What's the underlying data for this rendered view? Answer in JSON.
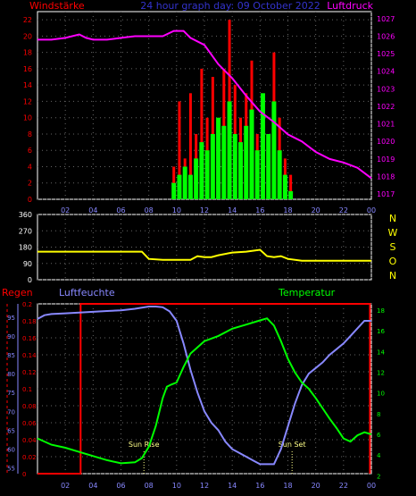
{
  "header": {
    "left_label": "Windstärke",
    "center_label": "24 hour graph day: 09 October 2022",
    "right_label": "Luftdruck"
  },
  "weather_labels": {
    "rain": "Regen",
    "humidity": "Luftfeuchte",
    "temperature": "Temperatur",
    "sunrise": "Sun Rise",
    "sunset": "Sun Set"
  },
  "colors": {
    "wind_label": "#ff0000",
    "title": "#3333cc",
    "pressure": "#ff00ff",
    "wind_gust": "#ff0000",
    "wind_avg": "#00ff00",
    "direction": "#ffff00",
    "compass": "#ffff00",
    "rain": "#ff0000",
    "humidity": "#8888ff",
    "temperature": "#00ff00",
    "sun": "#ffff88"
  },
  "chart_data": [
    {
      "type": "bar",
      "x_ticks": [
        "02",
        "04",
        "06",
        "08",
        "10",
        "12",
        "14",
        "16",
        "18",
        "20",
        "22",
        "00"
      ],
      "xlim": [
        0,
        24
      ],
      "ylabel": "Windstärke",
      "yticks": [
        0,
        2,
        4,
        6,
        8,
        10,
        12,
        14,
        16,
        18,
        20,
        22
      ],
      "ylim": [
        0,
        23
      ],
      "gust_hours": [
        9.8,
        10.2,
        10.6,
        11,
        11.4,
        11.8,
        12.2,
        12.6,
        13,
        13.4,
        13.8,
        14.2,
        14.6,
        15,
        15.4,
        15.8,
        16.2,
        16.6,
        17,
        17.4,
        17.8,
        18.2
      ],
      "gust_values": [
        4,
        12,
        5,
        13,
        8,
        16,
        10,
        15,
        7,
        16,
        22,
        14,
        10,
        13,
        17,
        8,
        12,
        6,
        18,
        10,
        5,
        3
      ],
      "avg_hours": [
        9.8,
        10.2,
        10.6,
        11,
        11.4,
        11.8,
        12.2,
        12.6,
        13,
        13.4,
        13.8,
        14.2,
        14.6,
        15,
        15.4,
        15.8,
        16.2,
        16.6,
        17,
        17.4,
        17.8,
        18.2
      ],
      "avg_values": [
        2,
        3,
        4,
        3,
        5,
        7,
        6,
        8,
        10,
        9,
        12,
        8,
        7,
        9,
        11,
        6,
        13,
        8,
        12,
        6,
        3,
        1
      ],
      "pressure_axis": {
        "label": "Luftdruck",
        "ticks": [
          1017,
          1018,
          1019,
          1020,
          1021,
          1022,
          1023,
          1024,
          1025,
          1026,
          1027
        ],
        "ylim": [
          1016.7,
          1027.4
        ]
      },
      "pressure_hours": [
        0,
        1,
        2,
        3,
        3.5,
        4,
        5,
        6,
        7,
        8,
        9,
        9.8,
        10.5,
        11,
        12,
        13,
        14,
        15,
        16,
        17,
        18,
        19,
        20,
        21,
        22,
        23,
        24
      ],
      "pressure_values": [
        1025.8,
        1025.8,
        1025.9,
        1026.1,
        1025.9,
        1025.8,
        1025.8,
        1025.9,
        1026.0,
        1026.0,
        1026.0,
        1026.3,
        1026.3,
        1025.9,
        1025.5,
        1024.4,
        1023.6,
        1022.6,
        1021.7,
        1021.1,
        1020.4,
        1020.0,
        1019.4,
        1019.0,
        1018.8,
        1018.5,
        1017.9
      ]
    },
    {
      "type": "line",
      "x_ticks": [
        "02",
        "04",
        "06",
        "08",
        "10",
        "12",
        "14",
        "16",
        "18",
        "20",
        "22",
        "00"
      ],
      "xlim": [
        0,
        24
      ],
      "yticks": [
        0,
        90,
        180,
        270,
        360
      ],
      "ylim": [
        0,
        360
      ],
      "compass_letters": [
        "N",
        "W",
        "S",
        "O",
        "N"
      ],
      "direction_hours": [
        0,
        1,
        2,
        3,
        4,
        5,
        6,
        7,
        7.5,
        8,
        9,
        10,
        11,
        11.5,
        12,
        12.5,
        13,
        14,
        15,
        16,
        16.5,
        17,
        17.5,
        18,
        19,
        20,
        21,
        22,
        23,
        24
      ],
      "direction_values": [
        155,
        155,
        155,
        155,
        155,
        155,
        155,
        155,
        155,
        115,
        110,
        110,
        110,
        130,
        125,
        125,
        135,
        150,
        155,
        165,
        130,
        125,
        130,
        115,
        105,
        105,
        105,
        105,
        105,
        105
      ]
    },
    {
      "type": "line",
      "x_ticks": [
        "02",
        "04",
        "06",
        "08",
        "10",
        "12",
        "14",
        "16",
        "18",
        "20",
        "22",
        "00"
      ],
      "xlim": [
        0,
        24
      ],
      "rain_axis": {
        "label": "Regen",
        "ticks": [
          "0",
          "0.02",
          "0.04",
          "0.06",
          "0.08",
          "0.1",
          "0.12",
          "0.14",
          "0.16",
          "0.18",
          "0.2"
        ],
        "ylim": [
          0,
          0.2
        ]
      },
      "rain_hours": [
        0,
        3.1,
        3.1,
        23.9,
        23.9
      ],
      "rain_values": [
        0,
        0,
        0.2,
        0.2,
        0
      ],
      "humidity_axis": {
        "label": "Luftfeuchte",
        "ticks": [
          55,
          60,
          65,
          70,
          75,
          80,
          85,
          90,
          95
        ],
        "ylim": [
          53.5,
          98.5
        ]
      },
      "humidity_hours": [
        0,
        0.5,
        1,
        2,
        3,
        4,
        5,
        6,
        7,
        8,
        8.5,
        9,
        9.5,
        10,
        10.5,
        11,
        11.5,
        12,
        12.5,
        13,
        13.5,
        14,
        14.5,
        15,
        15.5,
        16,
        16.5,
        17,
        17.5,
        18,
        18.5,
        19,
        19.5,
        20,
        20.5,
        21,
        21.5,
        22,
        22.5,
        23,
        23.5,
        24
      ],
      "humidity_values": [
        94.5,
        95.5,
        95.8,
        96,
        96.2,
        96.4,
        96.6,
        96.8,
        97.2,
        97.8,
        97.8,
        97.6,
        96.5,
        94,
        88,
        81,
        75,
        70,
        67,
        65,
        62,
        60,
        59,
        58,
        57,
        56,
        56,
        56,
        60,
        66,
        72,
        77,
        80,
        81.5,
        83,
        85,
        86.5,
        88,
        90,
        92,
        94,
        94
      ],
      "temperature_axis": {
        "label": "Temperatur",
        "ticks": [
          2,
          4,
          6,
          8,
          10,
          12,
          14,
          16,
          18
        ],
        "ylim": [
          2.2,
          18.6
        ]
      },
      "temperature_hours": [
        0,
        1,
        2,
        3,
        4,
        5,
        6,
        7,
        7.5,
        8,
        8.5,
        9,
        9.3,
        9.6,
        10,
        10.5,
        11,
        12,
        13,
        14,
        15,
        16,
        16.5,
        17,
        17.5,
        18,
        18.5,
        19,
        19.5,
        20,
        20.5,
        21,
        21.5,
        22,
        22.5,
        23,
        23.5,
        24
      ],
      "temperature_values": [
        5.6,
        5.0,
        4.7,
        4.3,
        3.9,
        3.5,
        3.2,
        3.3,
        3.7,
        4.8,
        6.8,
        9.5,
        10.6,
        10.8,
        11.0,
        12.5,
        13.8,
        15.0,
        15.5,
        16.2,
        16.6,
        17.0,
        17.2,
        16.5,
        15.0,
        13.3,
        12.0,
        11.0,
        10.4,
        9.5,
        8.5,
        7.5,
        6.6,
        5.6,
        5.3,
        5.9,
        6.2,
        6.0
      ],
      "sunrise_hour": 7.65,
      "sunset_hour": 18.3
    }
  ]
}
